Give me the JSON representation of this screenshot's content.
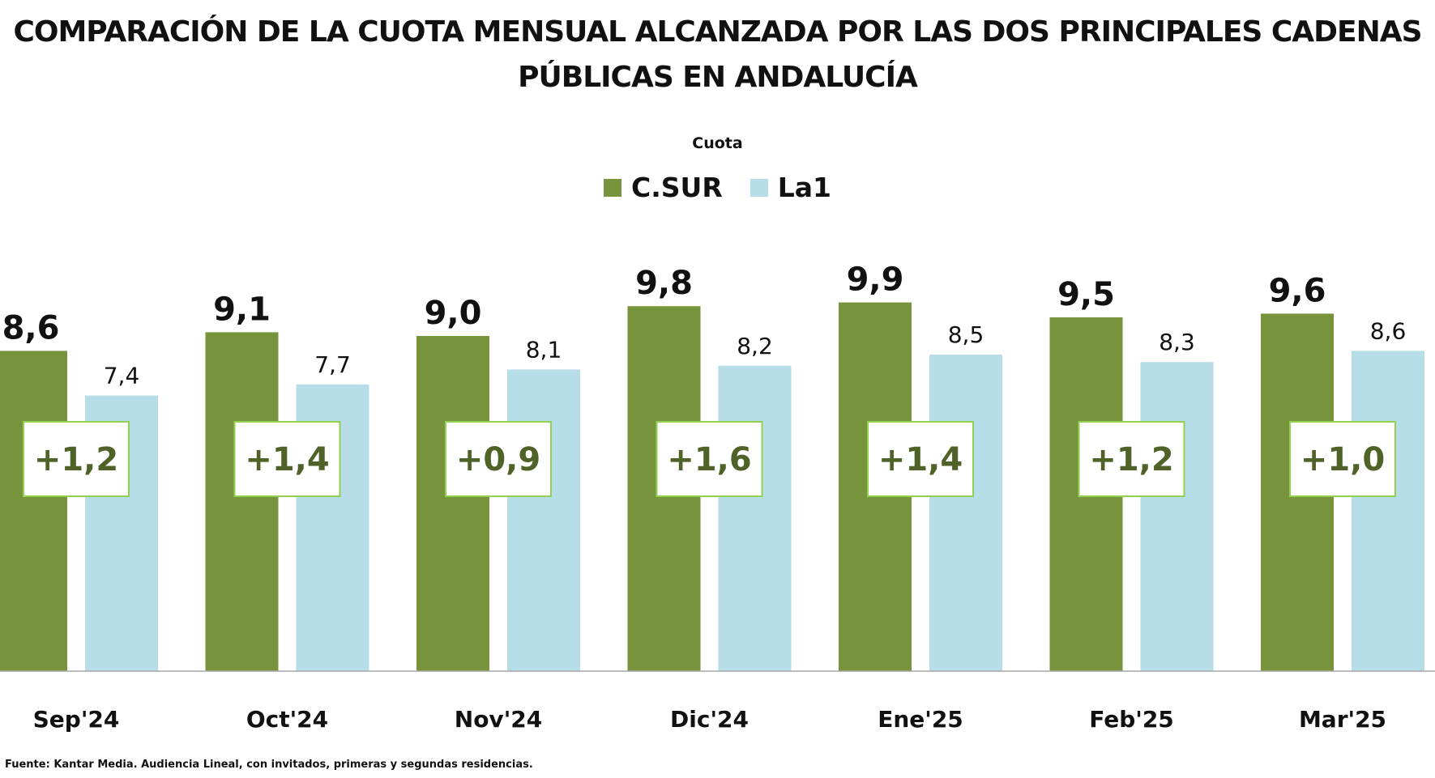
{
  "chart_data": {
    "type": "bar",
    "title": "COMPARACIÓN DE LA CUOTA MENSUAL ALCANZADA POR LAS DOS PRINCIPALES CADENAS PÚBLICAS EN ANDALUCÍA",
    "title_lines": [
      "COMPARACIÓN DE LA CUOTA MENSUAL ALCANZADA POR LAS DOS PRINCIPALES CADENAS",
      "PÚBLICAS EN ANDALUCÍA"
    ],
    "subtitle": "Cuota",
    "categories": [
      "Sep'24",
      "Oct'24",
      "Nov'24",
      "Dic'24",
      "Ene'25",
      "Feb'25",
      "Mar'25"
    ],
    "series": [
      {
        "name": "C.SUR",
        "color": "#77933c",
        "values": [
          8.6,
          9.1,
          9.0,
          9.8,
          9.9,
          9.5,
          9.6
        ],
        "labels": [
          "8,6",
          "9,1",
          "9,0",
          "9,8",
          "9,9",
          "9,5",
          "9,6"
        ]
      },
      {
        "name": "La1",
        "color": "#b7dde8",
        "values": [
          7.4,
          7.7,
          8.1,
          8.2,
          8.5,
          8.3,
          8.6
        ],
        "labels": [
          "7,4",
          "7,7",
          "8,1",
          "8,2",
          "8,5",
          "8,3",
          "8,6"
        ]
      }
    ],
    "difference_labels": [
      "+1,2",
      "+1,4",
      "+0,9",
      "+1,6",
      "+1,4",
      "+1,2",
      "+1,0"
    ],
    "difference_box_color": "#92d050",
    "difference_text_color": "#4f6228",
    "ylim": [
      0,
      10
    ],
    "grid": false,
    "legend_position": "top-center",
    "source_note": "Fuente: Kantar Media. Audiencia Lineal, con invitados, primeras y segundas residencias."
  }
}
